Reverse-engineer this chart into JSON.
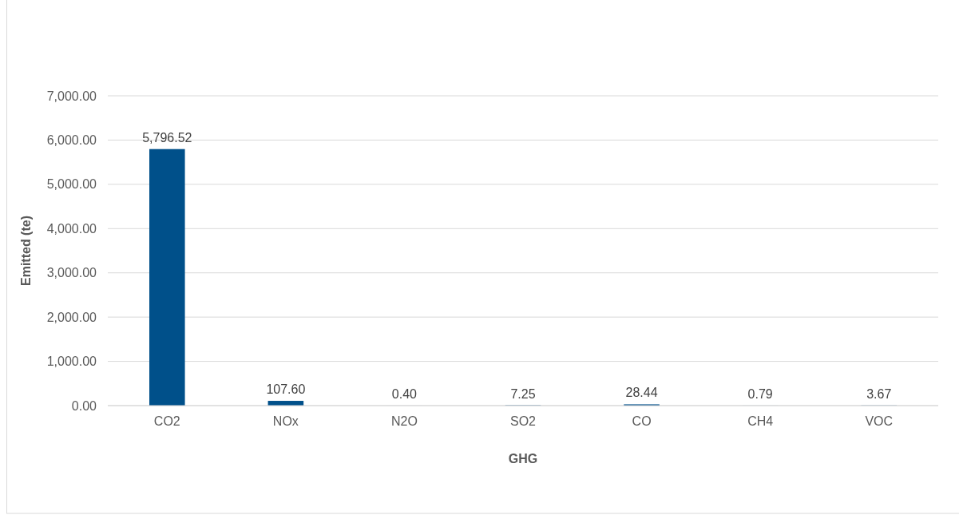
{
  "chart_data": {
    "type": "bar",
    "xlabel": "GHG",
    "ylabel": "Emitted (te)",
    "categories": [
      "CO2",
      "NOx",
      "N2O",
      "SO2",
      "CO",
      "CH4",
      "VOC"
    ],
    "values": [
      5796.52,
      107.6,
      0.4,
      7.25,
      28.44,
      0.79,
      3.67
    ],
    "value_labels": [
      "5,796.52",
      "107.60",
      "0.40",
      "7.25",
      "28.44",
      "0.79",
      "3.67"
    ],
    "color": "#00508a",
    "ylim": [
      0,
      7000
    ],
    "yticks": [
      {
        "value": 0,
        "label": "0.00"
      },
      {
        "value": 1000,
        "label": "1,000.00"
      },
      {
        "value": 2000,
        "label": "2,000.00"
      },
      {
        "value": 3000,
        "label": "3,000.00"
      },
      {
        "value": 4000,
        "label": "4,000.00"
      },
      {
        "value": 5000,
        "label": "5,000.00"
      },
      {
        "value": 6000,
        "label": "6,000.00"
      },
      {
        "value": 7000,
        "label": "7,000.00"
      }
    ],
    "grid": "y"
  }
}
